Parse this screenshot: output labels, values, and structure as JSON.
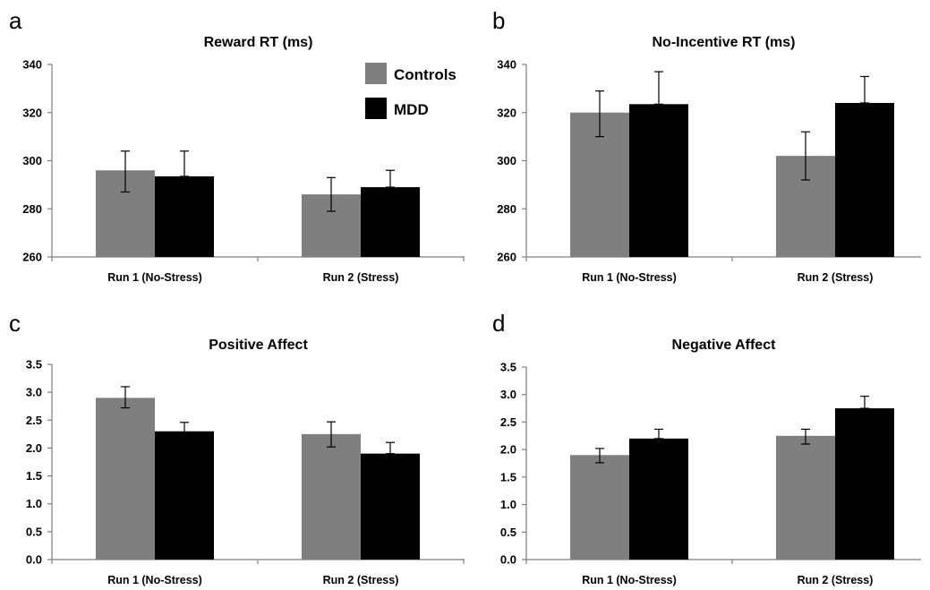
{
  "legend": {
    "series": [
      "Controls",
      "MDD"
    ]
  },
  "colors": {
    "Controls": "#7f7f7f",
    "MDD": "#000000",
    "axis": "#7f7f7f"
  },
  "chart_data": [
    {
      "panel": "a",
      "type": "bar",
      "title": "Reward RT (ms)",
      "categories": [
        "Run 1 (No-Stress)",
        "Run 2 (Stress)"
      ],
      "ylim": [
        260,
        340
      ],
      "yticks": [
        "260",
        "280",
        "300",
        "320",
        "340"
      ],
      "grid": false,
      "legend": "top-right",
      "series": [
        {
          "name": "Controls",
          "values": [
            296,
            286
          ],
          "err_low": [
            287,
            279
          ],
          "err_high": [
            304,
            293
          ]
        },
        {
          "name": "MDD",
          "values": [
            293.5,
            289
          ],
          "err_low": [
            293.5,
            289
          ],
          "err_high": [
            304,
            296
          ]
        }
      ]
    },
    {
      "panel": "b",
      "type": "bar",
      "title": "No-Incentive RT (ms)",
      "categories": [
        "Run 1 (No-Stress)",
        "Run 2 (Stress)"
      ],
      "ylim": [
        260,
        340
      ],
      "yticks": [
        "260",
        "280",
        "300",
        "320",
        "340"
      ],
      "grid": false,
      "series": [
        {
          "name": "Controls",
          "values": [
            320,
            302
          ],
          "err_low": [
            310,
            292
          ],
          "err_high": [
            329,
            312
          ]
        },
        {
          "name": "MDD",
          "values": [
            323.5,
            324
          ],
          "err_low": [
            323.5,
            324
          ],
          "err_high": [
            337,
            335
          ]
        }
      ]
    },
    {
      "panel": "c",
      "type": "bar",
      "title": "Positive Affect",
      "categories": [
        "Run 1 (No-Stress)",
        "Run 2 (Stress)"
      ],
      "ylim": [
        0,
        3.5
      ],
      "yticks": [
        "0.0",
        "0.5",
        "1.0",
        "1.5",
        "2.0",
        "2.5",
        "3.0",
        "3.5"
      ],
      "grid": false,
      "series": [
        {
          "name": "Controls",
          "values": [
            2.9,
            2.25
          ],
          "err_low": [
            2.72,
            2.02
          ],
          "err_high": [
            3.1,
            2.47
          ]
        },
        {
          "name": "MDD",
          "values": [
            2.3,
            1.9
          ],
          "err_low": [
            2.15,
            1.9
          ],
          "err_high": [
            2.46,
            2.1
          ]
        }
      ]
    },
    {
      "panel": "d",
      "type": "bar",
      "title": "Negative Affect",
      "categories": [
        "Run 1 (No-Stress)",
        "Run 2 (Stress)"
      ],
      "ylim": [
        0,
        3.5
      ],
      "yticks": [
        "0.0",
        "0.5",
        "1.0",
        "1.5",
        "2.0",
        "2.5",
        "3.0",
        "3.5"
      ],
      "grid": false,
      "series": [
        {
          "name": "Controls",
          "values": [
            1.9,
            2.25
          ],
          "err_low": [
            1.76,
            2.1
          ],
          "err_high": [
            2.02,
            2.37
          ]
        },
        {
          "name": "MDD",
          "values": [
            2.2,
            2.75
          ],
          "err_low": [
            2.2,
            2.75
          ],
          "err_high": [
            2.37,
            2.97
          ]
        }
      ]
    }
  ]
}
